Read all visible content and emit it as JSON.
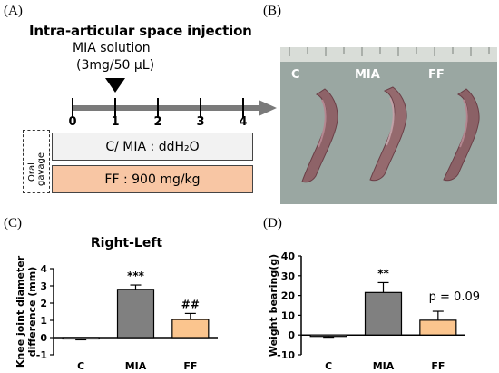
{
  "panel_labels": {
    "a": "(A)",
    "b": "(B)",
    "c": "(C)",
    "d": "(D)"
  },
  "panel_a": {
    "title": "Intra-articular space injection",
    "injection_line1": "MIA solution",
    "injection_line2": "(3mg/50 μL)",
    "timeline_ticks": [
      "0",
      "1",
      "2",
      "3",
      "4"
    ],
    "injection_day": 1,
    "gavage_label_1": "Oral",
    "gavage_label_2": "gavage",
    "control_box_text": "C/ MIA : ddH₂O",
    "ff_box_text": "FF : 900 mg/kg"
  },
  "panel_b": {
    "photo_labels": [
      "C",
      "MIA",
      "FF"
    ]
  },
  "colors": {
    "timeline": "#7a7a7a",
    "control_box": "#f2f2f2",
    "ff_box": "#f8c6a4",
    "bar_mia": "#808080",
    "bar_ff": "#fbc58e",
    "bar_c": "#ffffff",
    "photo_bg": "#9aa7a2"
  },
  "chart_data": [
    {
      "type": "bar",
      "title": "Right-Left",
      "ylabel": "Knee joint diameter difference (mm)",
      "categories": [
        "C",
        "MIA",
        "FF"
      ],
      "values": [
        -0.05,
        2.8,
        1.05
      ],
      "errors": [
        0.08,
        0.25,
        0.35
      ],
      "annotations": [
        "",
        "***",
        "##"
      ],
      "ylim": [
        -1,
        4
      ],
      "yticks": [
        "-1",
        "0",
        "1",
        "2",
        "3",
        "4"
      ]
    },
    {
      "type": "bar",
      "title": "",
      "ylabel": "Weight bearing(g)",
      "categories": [
        "C",
        "MIA",
        "FF"
      ],
      "values": [
        -0.5,
        21.5,
        7.5
      ],
      "errors": [
        0.6,
        5,
        4.5
      ],
      "annotations": [
        "",
        "**",
        "p = 0.09"
      ],
      "ylim": [
        -10,
        40
      ],
      "yticks": [
        "-10",
        "0",
        "10",
        "20",
        "30",
        "40"
      ]
    }
  ]
}
